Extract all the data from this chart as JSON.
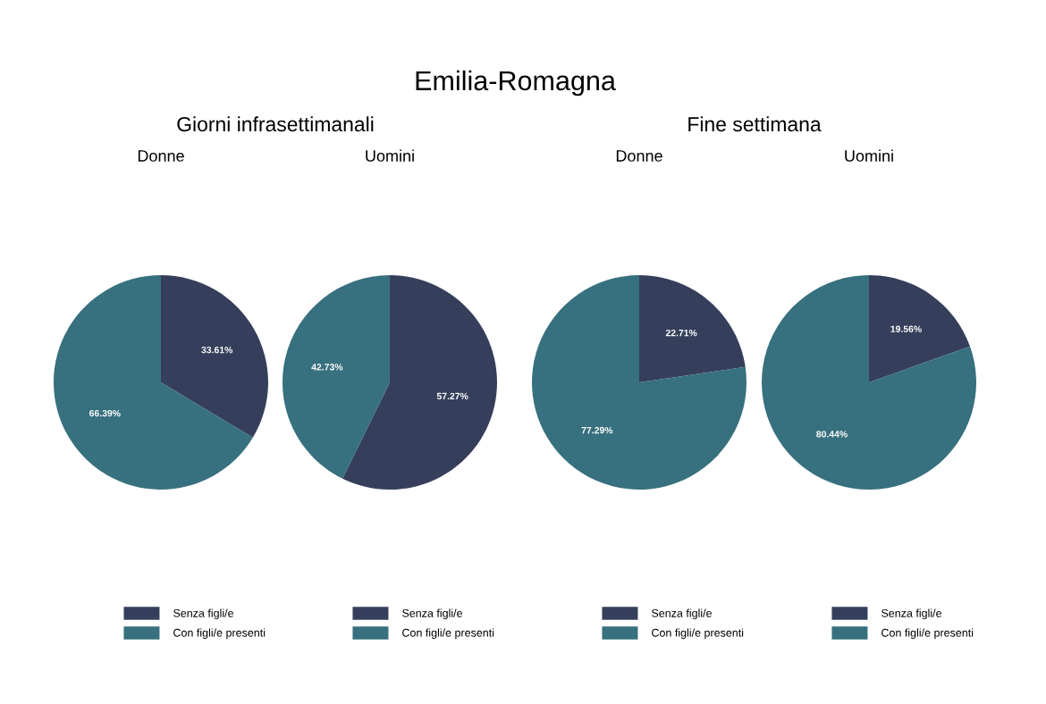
{
  "chart_data": [
    {
      "type": "pie",
      "annotations": [
        "Emilia-Romagna"
      ],
      "subtitle": "Giorni infrasettimanali",
      "title": "Donne",
      "categories": [
        "Senza figli/e",
        "Con figli/e presenti"
      ],
      "values": [
        33.61,
        66.39
      ],
      "colors": [
        "#353f5b",
        "#37707e"
      ],
      "value_labels": [
        "33.61%",
        "66.39%"
      ],
      "legend": "bottom"
    },
    {
      "type": "pie",
      "title": "Uomini",
      "categories": [
        "Senza figli/e",
        "Con figli/e presenti"
      ],
      "values": [
        57.27,
        42.73
      ],
      "colors": [
        "#353f5b",
        "#37707e"
      ],
      "value_labels": [
        "57.27%",
        "42.73%"
      ],
      "legend": "bottom"
    },
    {
      "type": "pie",
      "subtitle": "Fine settimana",
      "title": "Donne",
      "categories": [
        "Senza figli/e",
        "Con figli/e presenti"
      ],
      "values": [
        22.71,
        77.29
      ],
      "colors": [
        "#353f5b",
        "#37707e"
      ],
      "value_labels": [
        "22.71%",
        "77.29%"
      ],
      "legend": "bottom"
    },
    {
      "type": "pie",
      "title": "Uomini",
      "categories": [
        "Senza figli/e",
        "Con figli/e presenti"
      ],
      "values": [
        19.56,
        80.44
      ],
      "colors": [
        "#353f5b",
        "#37707e"
      ],
      "value_labels": [
        "19.56%",
        "80.44%"
      ],
      "legend": "bottom"
    }
  ]
}
